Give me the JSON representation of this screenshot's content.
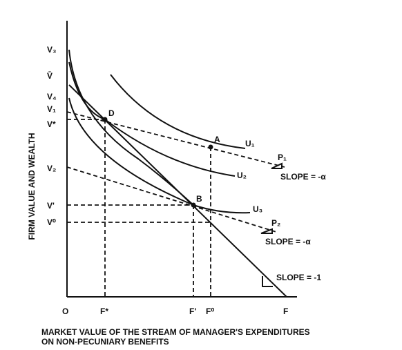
{
  "y_axis_label": "FIRM VALUE AND WEALTH",
  "x_axis_label": [
    "MARKET VALUE OF THE STREAM OF MANAGER'S EXPENDITURES",
    "ON NON-PECUNIARY BENEFITS"
  ],
  "y_labels": [
    "V₃",
    "V̄",
    "V₄",
    "V₁",
    "V*",
    "V₂",
    "V'",
    "V⁰"
  ],
  "x_labels": [
    "O",
    "F*",
    "F'",
    "F⁰",
    "F"
  ],
  "points": [
    "D",
    "A",
    "B"
  ],
  "curves": [
    "U₁",
    "U₂",
    "U₃",
    "P₁",
    "P₂"
  ],
  "slopes": [
    "SLOPE = -α",
    "SLOPE = -α",
    "SLOPE = -1"
  ]
}
